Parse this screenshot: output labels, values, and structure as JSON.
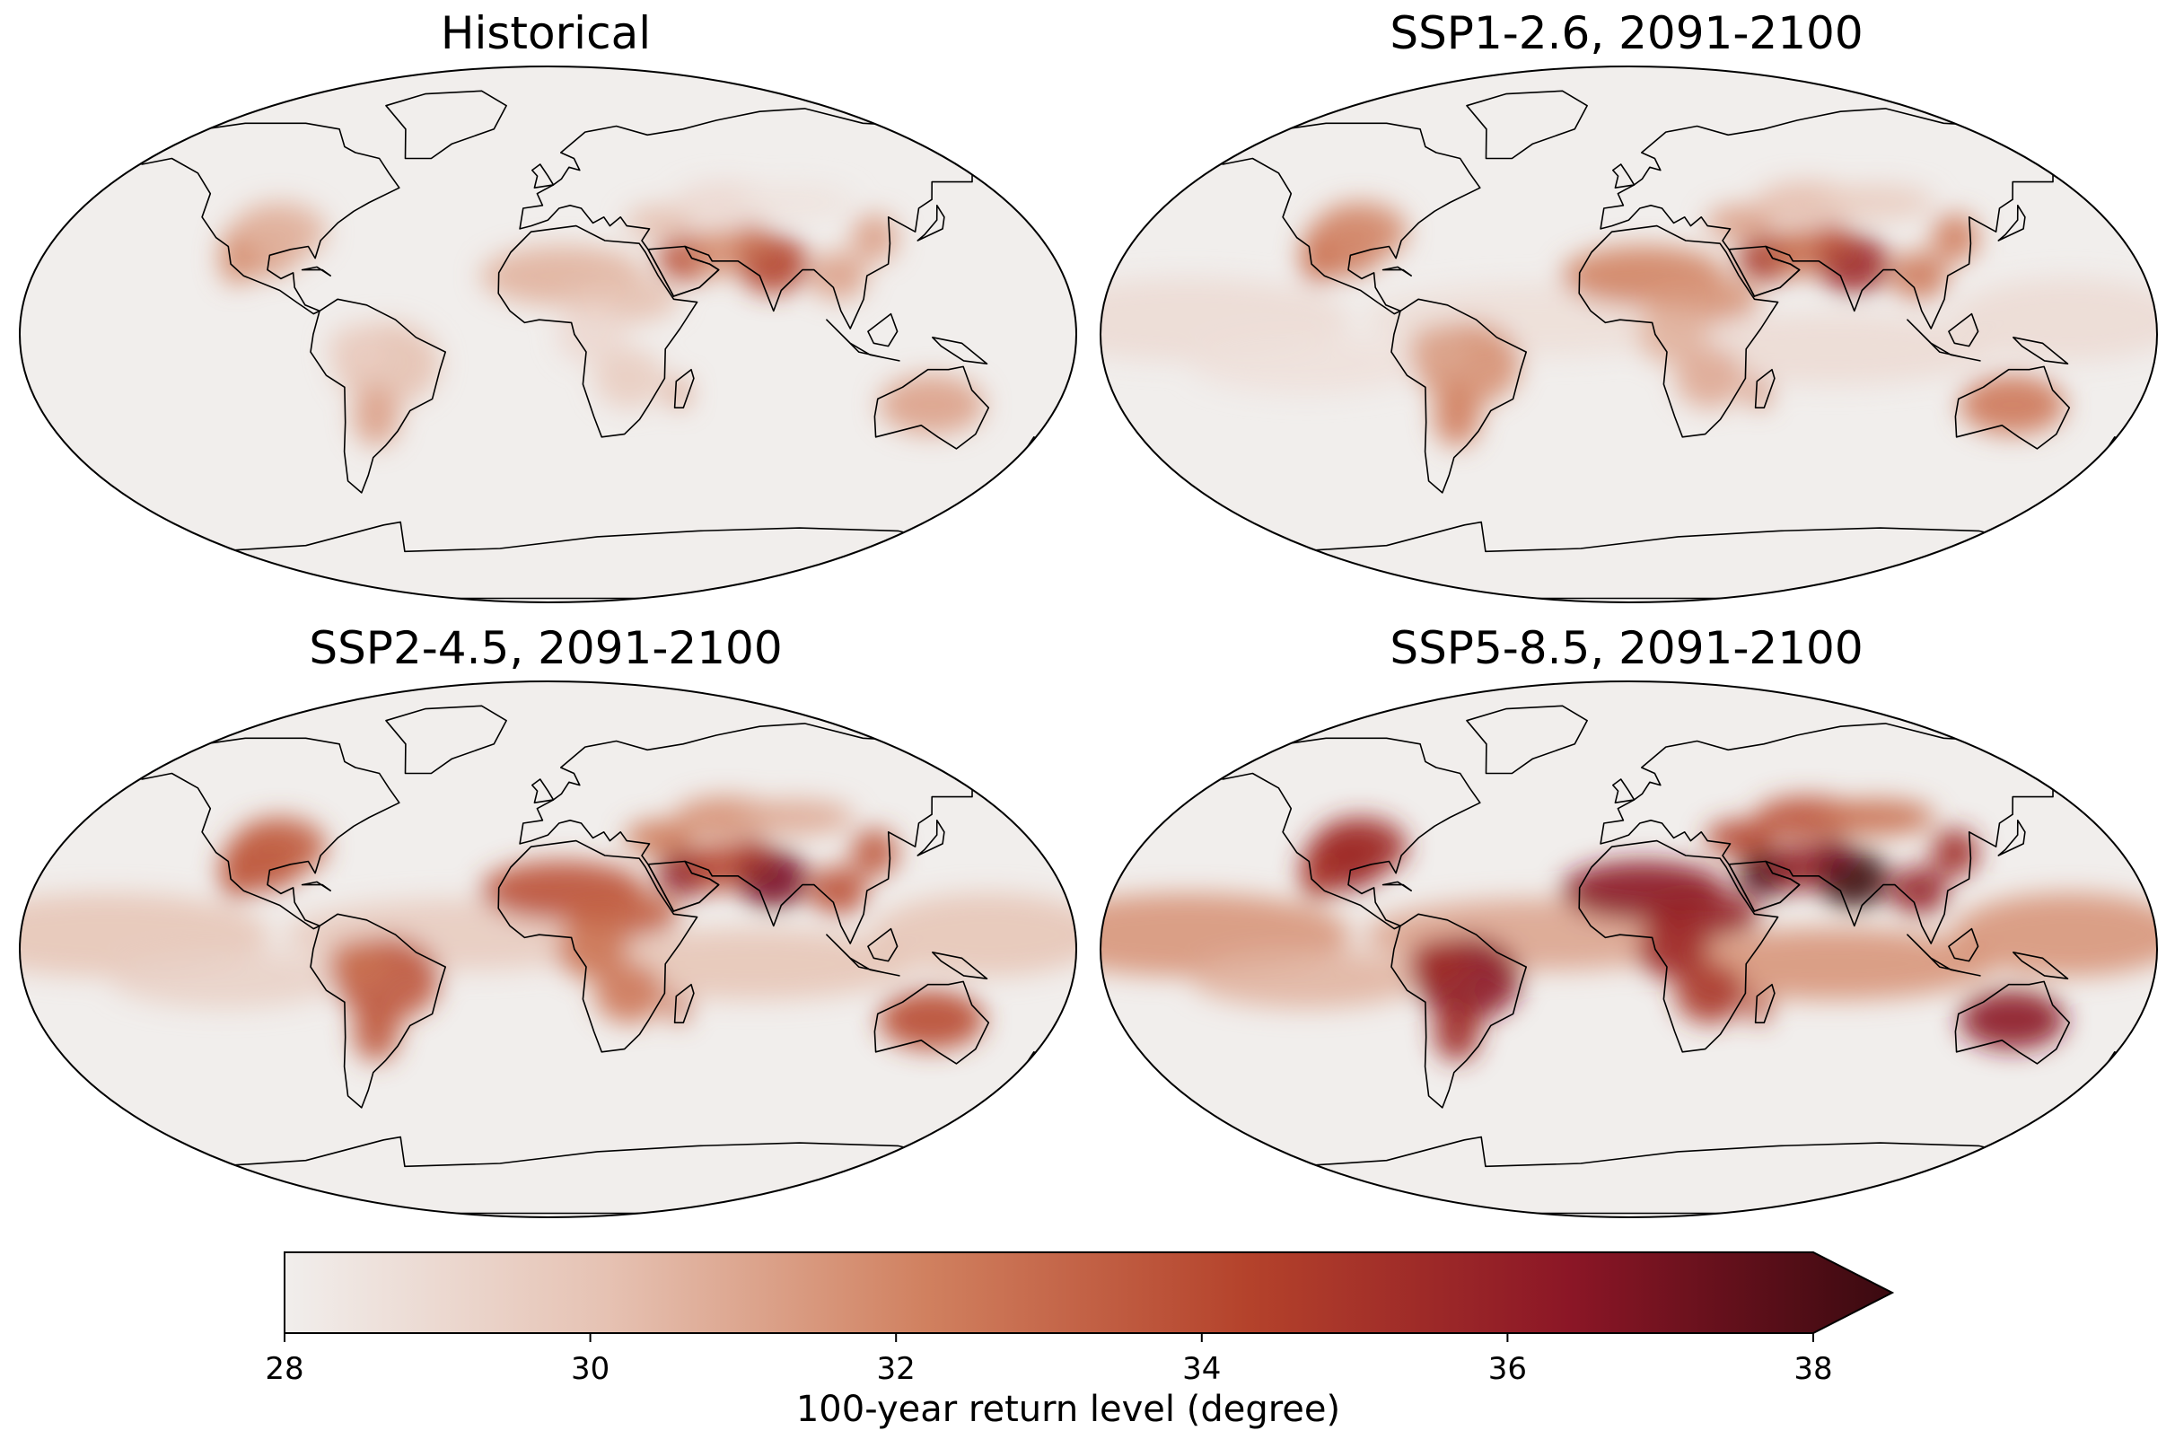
{
  "panels": [
    {
      "title": "Historical",
      "warming": 0.0
    },
    {
      "title": "SSP1-2.6, 2091-2100",
      "warming": 0.25
    },
    {
      "title": "SSP2-4.5, 2091-2100",
      "warming": 0.55
    },
    {
      "title": "SSP5-8.5, 2091-2100",
      "warming": 1.0
    }
  ],
  "colorbar": {
    "label": "100-year return level (degree)",
    "min": 28,
    "max": 38,
    "extend": "max",
    "ticks": [
      "28",
      "30",
      "32",
      "34",
      "36",
      "38"
    ],
    "colors": [
      "#f1eeec",
      "#e6c2b3",
      "#d0805f",
      "#b4422b",
      "#8b1626",
      "#3a0a10"
    ]
  }
}
